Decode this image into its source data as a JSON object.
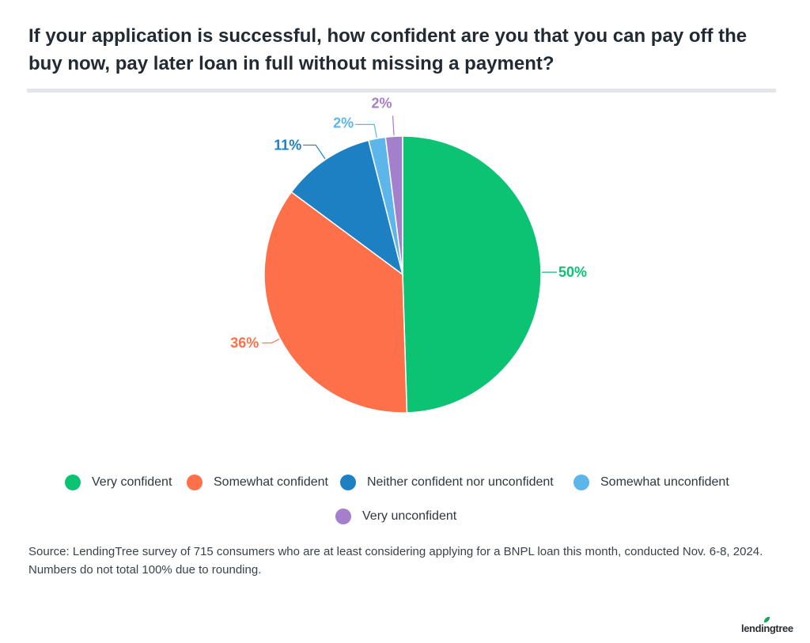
{
  "title": "If your application is successful, how confident are you that you can pay off the buy now, pay later loan in full without missing a payment?",
  "source": "Source: LendingTree survey of 715 consumers who are at least considering applying for a BNPL loan this month, conducted Nov. 6-8, 2024. Numbers do not total 100% due to rounding.",
  "logo": {
    "text": "lendingtree",
    "icon": "leaf-icon",
    "leaf_color": "#19a35b"
  },
  "chart_data": {
    "type": "pie",
    "title": "If your application is successful, how confident are you that you can pay off the buy now, pay later loan in full without missing a payment?",
    "start": "12 o'clock",
    "direction": "clockwise",
    "legend_position": "bottom",
    "slices": [
      {
        "label": "Very confident",
        "value": 50,
        "display": "50%",
        "color": "#0cc273"
      },
      {
        "label": "Somewhat confident",
        "value": 36,
        "display": "36%",
        "color": "#fd7049"
      },
      {
        "label": "Neither confident nor unconfident",
        "value": 11,
        "display": "11%",
        "color": "#1d80c2"
      },
      {
        "label": "Somewhat unconfident",
        "value": 2,
        "display": "2%",
        "color": "#5db6ea"
      },
      {
        "label": "Very unconfident",
        "value": 2,
        "display": "2%",
        "color": "#a37fcc"
      }
    ]
  }
}
